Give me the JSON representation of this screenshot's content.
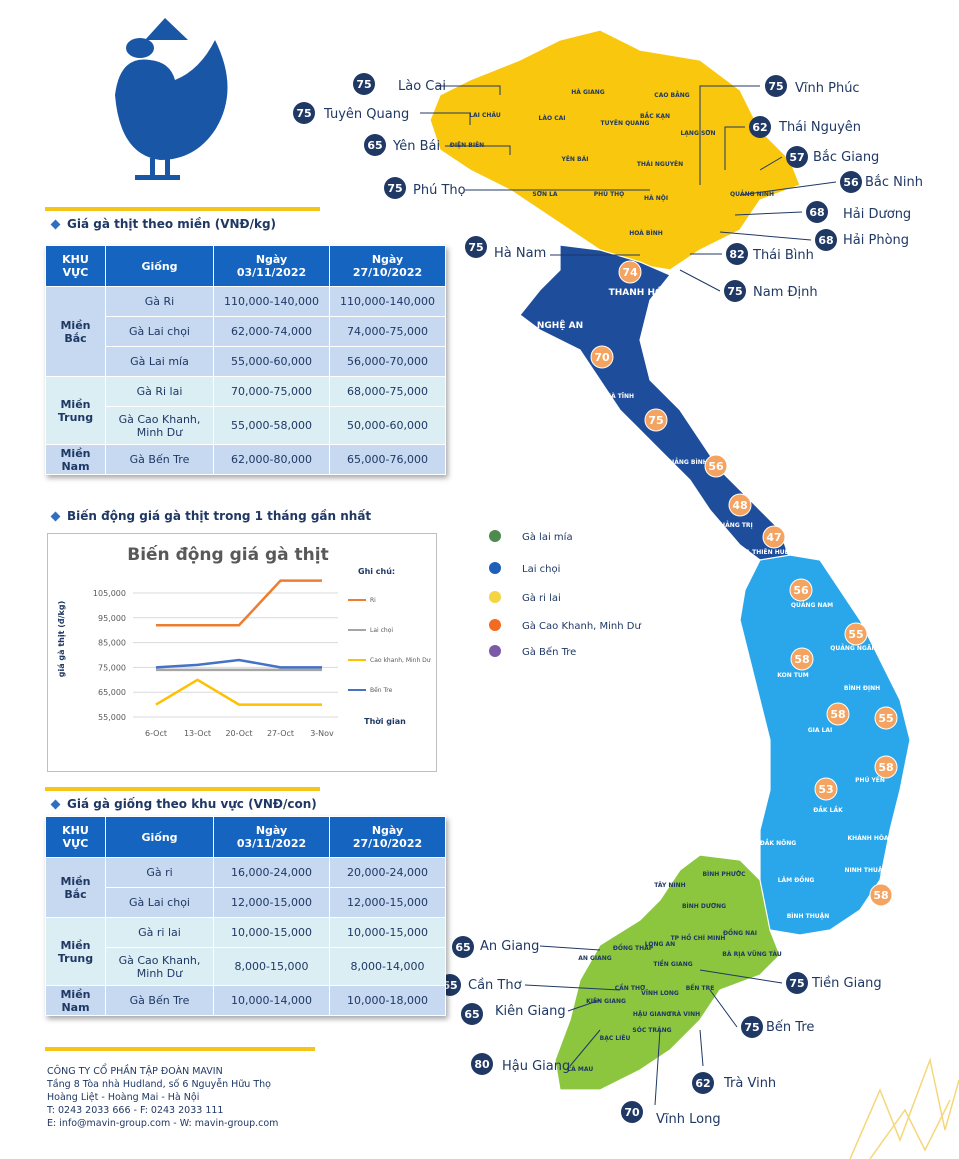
{
  "header": {
    "section1": "Giá gà thịt theo miền (VNĐ/kg)",
    "section2": "Biến động giá gà thịt trong 1 tháng gần nhất",
    "section3": "Giá gà giống theo khu vực (VNĐ/con)"
  },
  "meat_table": {
    "columns": [
      "KHU VỰC",
      "Giống",
      "Ngày 03/11/2022",
      "Ngày 27/10/2022"
    ],
    "groups": [
      {
        "region": "Miền Bắc",
        "rows": [
          [
            "Gà Ri",
            "110,000-140,000",
            "110,000-140,000"
          ],
          [
            "Gà Lai chọi",
            "62,000-74,000",
            "74,000-75,000"
          ],
          [
            "Gà Lai mía",
            "55,000-60,000",
            "56,000-70,000"
          ]
        ]
      },
      {
        "region": "Miền Trung",
        "rows": [
          [
            "Gà Ri lai",
            "70,000-75,000",
            "68,000-75,000"
          ],
          [
            "Gà Cao Khanh, Minh Dư",
            "55,000-58,000",
            "50,000-60,000"
          ]
        ]
      },
      {
        "region": "Miền Nam",
        "rows": [
          [
            "Gà Bến Tre",
            "62,000-80,000",
            "65,000-76,000"
          ]
        ]
      }
    ]
  },
  "chart_data": {
    "type": "line",
    "title": "Biến động giá gà thịt",
    "y_label": "giá gà thịt (đ/kg)",
    "x_label": "Thời gian",
    "legend_title": "Ghi chú:",
    "categories": [
      "6-Oct",
      "13-Oct",
      "20-Oct",
      "27-Oct",
      "3-Nov"
    ],
    "series": [
      {
        "name": "Ri",
        "color": "#ed7d31",
        "values": [
          92000,
          92000,
          92000,
          110000,
          110000
        ]
      },
      {
        "name": "Lai chọi",
        "color": "#a5a5a5",
        "values": [
          74000,
          74000,
          74000,
          74000,
          74000
        ]
      },
      {
        "name": "Cao khanh, Minh Dư",
        "color": "#ffc000",
        "values": [
          60000,
          70000,
          60000,
          60000,
          60000
        ]
      },
      {
        "name": "Bến Tre",
        "color": "#4472c4",
        "values": [
          75000,
          76000,
          78000,
          75000,
          75000
        ]
      }
    ],
    "ylim": [
      55000,
      110000
    ],
    "yticks": [
      {
        "value": 55000,
        "label": "55,000"
      },
      {
        "value": 65000,
        "label": "65,000"
      },
      {
        "value": 75000,
        "label": "75,000"
      },
      {
        "value": 85000,
        "label": "85,000"
      },
      {
        "value": 95000,
        "label": "95,000"
      },
      {
        "value": 105000,
        "label": "105,000"
      }
    ],
    "grid": true
  },
  "breed_table": {
    "columns": [
      "KHU VỰC",
      "Giống",
      "Ngày 03/11/2022",
      "Ngày 27/10/2022"
    ],
    "groups": [
      {
        "region": "Miền Bắc",
        "rows": [
          [
            "Gà ri",
            "16,000-24,000",
            "20,000-24,000"
          ],
          [
            "Gà Lai chọi",
            "12,000-15,000",
            "12,000-15,000"
          ]
        ]
      },
      {
        "region": "Miền Trung",
        "rows": [
          [
            "Gà ri lai",
            "10,000-15,000",
            "10,000-15,000"
          ],
          [
            "Gà Cao Khanh, Minh Dư",
            "8,000-15,000",
            "8,000-14,000"
          ]
        ]
      },
      {
        "region": "Miền Nam",
        "rows": [
          [
            "Gà Bến Tre",
            "10,000-14,000",
            "10,000-18,000"
          ]
        ]
      }
    ]
  },
  "legend": [
    {
      "name": "Gà lai mía",
      "color": "#4e8a4e"
    },
    {
      "name": "Lai chọi",
      "color": "#1f5fb8"
    },
    {
      "name": "Gà ri lai",
      "color": "#f5d442"
    },
    {
      "name": "Gà Cao Khanh, Minh Dư",
      "color": "#f26b21"
    },
    {
      "name": "Gà Bến Tre",
      "color": "#7b5aa6"
    }
  ],
  "callouts": [
    {
      "name": "Lào Cai",
      "value": 75
    },
    {
      "name": "Vĩnh Phúc",
      "value": 75
    },
    {
      "name": "Tuyên Quang",
      "value": 75
    },
    {
      "name": "Thái Nguyên",
      "value": 62
    },
    {
      "name": "Yên Bái",
      "value": 65
    },
    {
      "name": "Bắc Giang",
      "value": 57
    },
    {
      "name": "Bắc Ninh",
      "value": 56
    },
    {
      "name": "Phú Thọ",
      "value": 75
    },
    {
      "name": "Hải Dương",
      "value": 68
    },
    {
      "name": "Hà Nam",
      "value": 75
    },
    {
      "name": "Hải Phòng",
      "value": 68
    },
    {
      "name": "Thái Bình",
      "value": 82
    },
    {
      "name": "Nam Định",
      "value": 75
    },
    {
      "name": "An Giang",
      "value": 65
    },
    {
      "name": "Tiền Giang",
      "value": 75
    },
    {
      "name": "Cần Thơ",
      "value": 65
    },
    {
      "name": "Bến Tre",
      "value": 75
    },
    {
      "name": "Kiên Giang",
      "value": 65
    },
    {
      "name": "Hậu Giang",
      "value": 80
    },
    {
      "name": "Trà Vinh",
      "value": 62
    },
    {
      "name": "Vĩnh Long",
      "value": 70
    }
  ],
  "badges": [
    74,
    70,
    75,
    56,
    48,
    47,
    56,
    55,
    58,
    58,
    55,
    58,
    53,
    58
  ],
  "provinces": [
    "HÀ GIANG",
    "CAO BẰNG",
    "LAI CHÂU",
    "LÀO CAI",
    "TUYÊN QUANG",
    "BẮC KẠN",
    "LẠNG SƠN",
    "ĐIỆN BIÊN",
    "YÊN BÁI",
    "THÁI NGUYÊN",
    "SƠN LA",
    "PHÚ THỌ",
    "HÀ NỘI",
    "QUẢNG NINH",
    "HOÀ BÌNH",
    "THANH HÓA",
    "NGHỆ AN",
    "HÀ TĨNH",
    "QUẢNG BÌNH",
    "QUẢNG TRỊ",
    "THỪA THIÊN HUẾ",
    "QUẢNG NAM",
    "QUẢNG NGÃI",
    "KON TUM",
    "BÌNH ĐỊNH",
    "GIA LAI",
    "PHÚ YÊN",
    "ĐẮK LẮK",
    "KHÁNH HÒA",
    "ĐẮK NÔNG",
    "NINH THUẬN",
    "LÂM ĐỒNG",
    "BÌNH THUẬN",
    "BÌNH PHƯỚC",
    "TÂY NINH",
    "BÌNH DƯƠNG",
    "ĐỒNG NAI",
    "TP HỒ CHÍ MINH",
    "BÀ RỊA VŨNG TÀU",
    "ĐỒNG THÁP",
    "LONG AN",
    "AN GIANG",
    "TIỀN GIANG",
    "CẦN THƠ",
    "VĨNH LONG",
    "KIÊN GIANG",
    "HẬU GIANG",
    "TRÀ VINH",
    "SÓC TRĂNG",
    "BẠC LIÊU",
    "CÀ MAU",
    "BẾN TRE"
  ],
  "company": {
    "name": "CÔNG TY CỔ PHẦN TẬP ĐOÀN MAVIN",
    "lines": [
      "Tầng 8 Tòa nhà Hudland, số 6 Nguyễn Hữu Thọ",
      "Hoàng Liệt - Hoàng Mai - Hà Nội",
      "T: 0243 2033 666 - F: 0243 2033 111",
      "E: info@mavin-group.com - W: mavin-group.com"
    ]
  }
}
